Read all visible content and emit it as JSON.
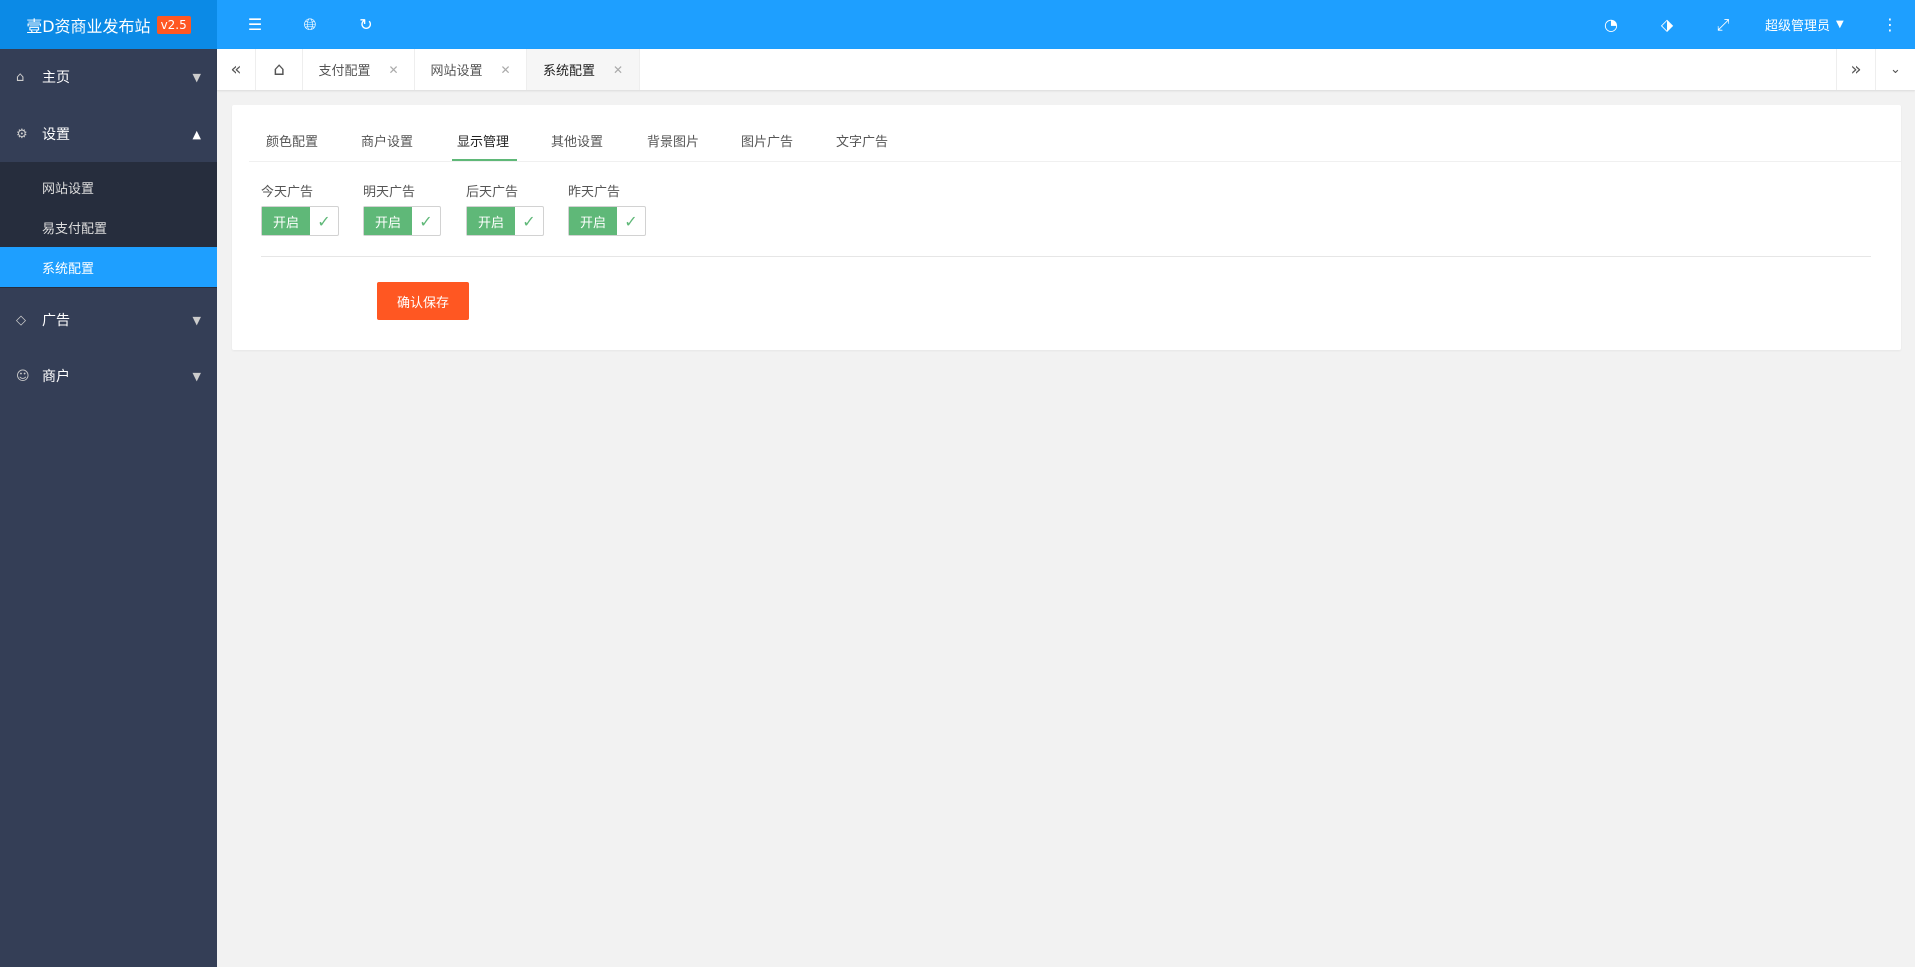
{
  "header": {
    "site_name": "壹D资商业发布站",
    "version": "v2.5",
    "user": "超级管理员",
    "icons": [
      "shrink-menu-icon",
      "globe-icon",
      "refresh-icon",
      "palette-icon",
      "tag-icon",
      "fullscreen-icon",
      "more-icon"
    ]
  },
  "sidebar": {
    "items": [
      {
        "label": "主页",
        "icon": "home-icon"
      },
      {
        "label": "设置",
        "icon": "gear-icon",
        "children": [
          "网站设置",
          "易支付配置",
          "系统配置"
        ]
      },
      {
        "label": "广告",
        "icon": "diamond-icon"
      },
      {
        "label": "商户",
        "icon": "user-icon"
      }
    ],
    "active": "系统配置"
  },
  "tabs": [
    "支付配置",
    "网站设置",
    "系统配置"
  ],
  "active_tab": "系统配置",
  "card": {
    "tabs": [
      "颜色配置",
      "商户设置",
      "显示管理",
      "其他设置",
      "背景图片",
      "图片广告",
      "文字广告"
    ],
    "active_tab": "显示管理",
    "switches": [
      {
        "label": "今天广告",
        "state": "开启"
      },
      {
        "label": "明天广告",
        "state": "开启"
      },
      {
        "label": "后天广告",
        "state": "开启"
      },
      {
        "label": "昨天广告",
        "state": "开启"
      }
    ],
    "save": "确认保存"
  },
  "colors": {
    "header": "#1E9FFF",
    "sidebar": "#343e56",
    "switch_on": "#5FB878",
    "save": "#FF5722"
  }
}
